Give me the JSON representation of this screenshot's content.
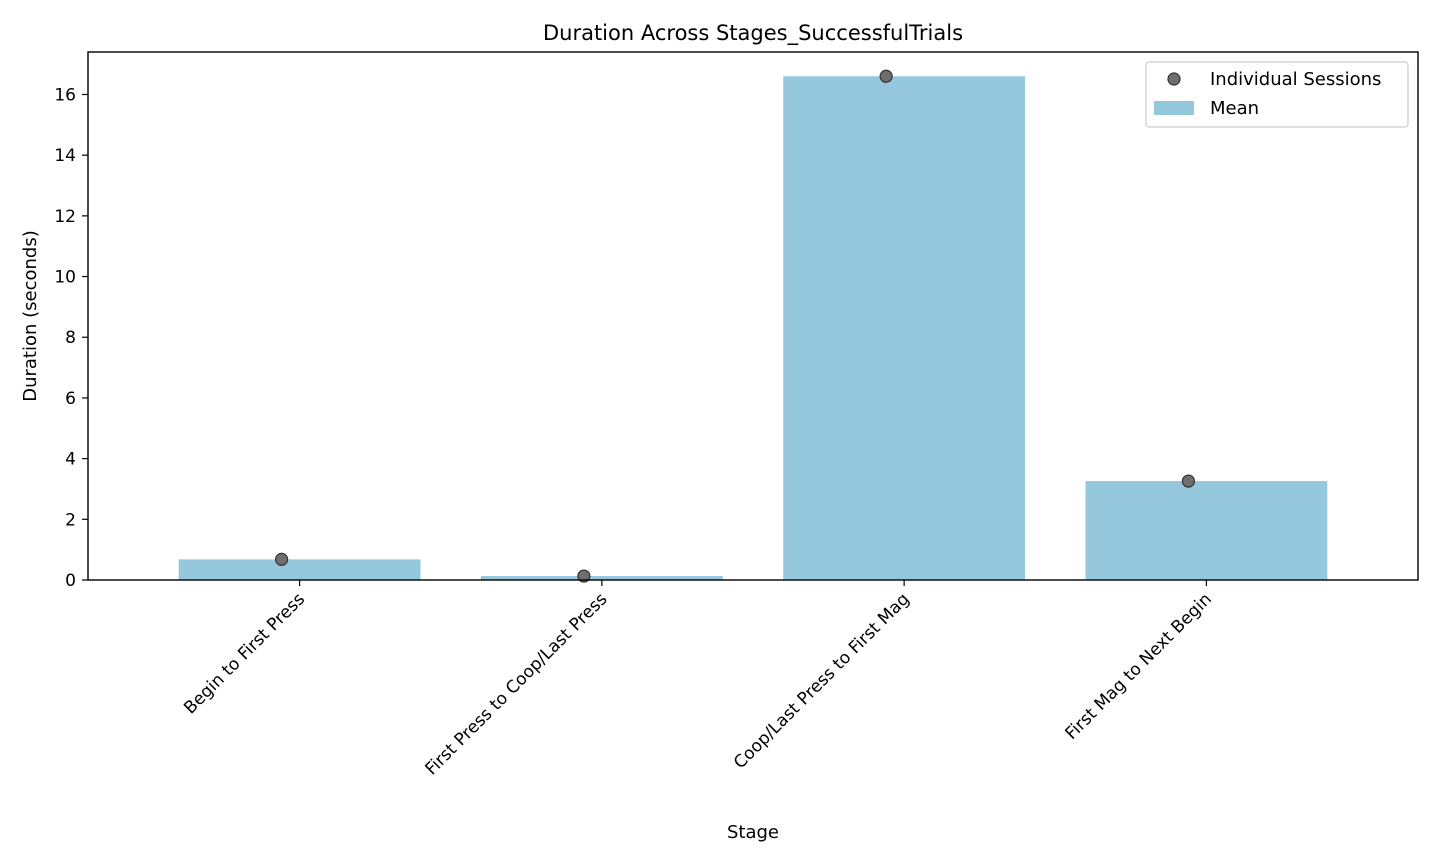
{
  "chart_data": {
    "type": "bar",
    "title": "Duration Across Stages_SuccessfulTrials",
    "xlabel": "Stage",
    "ylabel": "Duration (seconds)",
    "categories": [
      "Begin to First Press",
      "First Press to Coop/Last Press",
      "Coop/Last Press to First Mag",
      "First Mag to Next Begin"
    ],
    "series": [
      {
        "name": "Mean",
        "kind": "bar",
        "values": [
          0.68,
          0.13,
          16.6,
          3.26
        ]
      },
      {
        "name": "Individual Sessions",
        "kind": "scatter",
        "points": [
          {
            "x": 0,
            "y": 0.68
          },
          {
            "x": 1,
            "y": 0.13
          },
          {
            "x": 2,
            "y": 16.6
          },
          {
            "x": 3,
            "y": 3.26
          }
        ]
      }
    ],
    "ylim": [
      0,
      17.4
    ],
    "yticks": [
      0,
      2,
      4,
      6,
      8,
      10,
      12,
      14,
      16
    ],
    "grid": false,
    "legend": "top-right",
    "colors": {
      "bar": "#95c8dd",
      "point": "#6e6e6e",
      "point_edge": "#333333"
    }
  }
}
